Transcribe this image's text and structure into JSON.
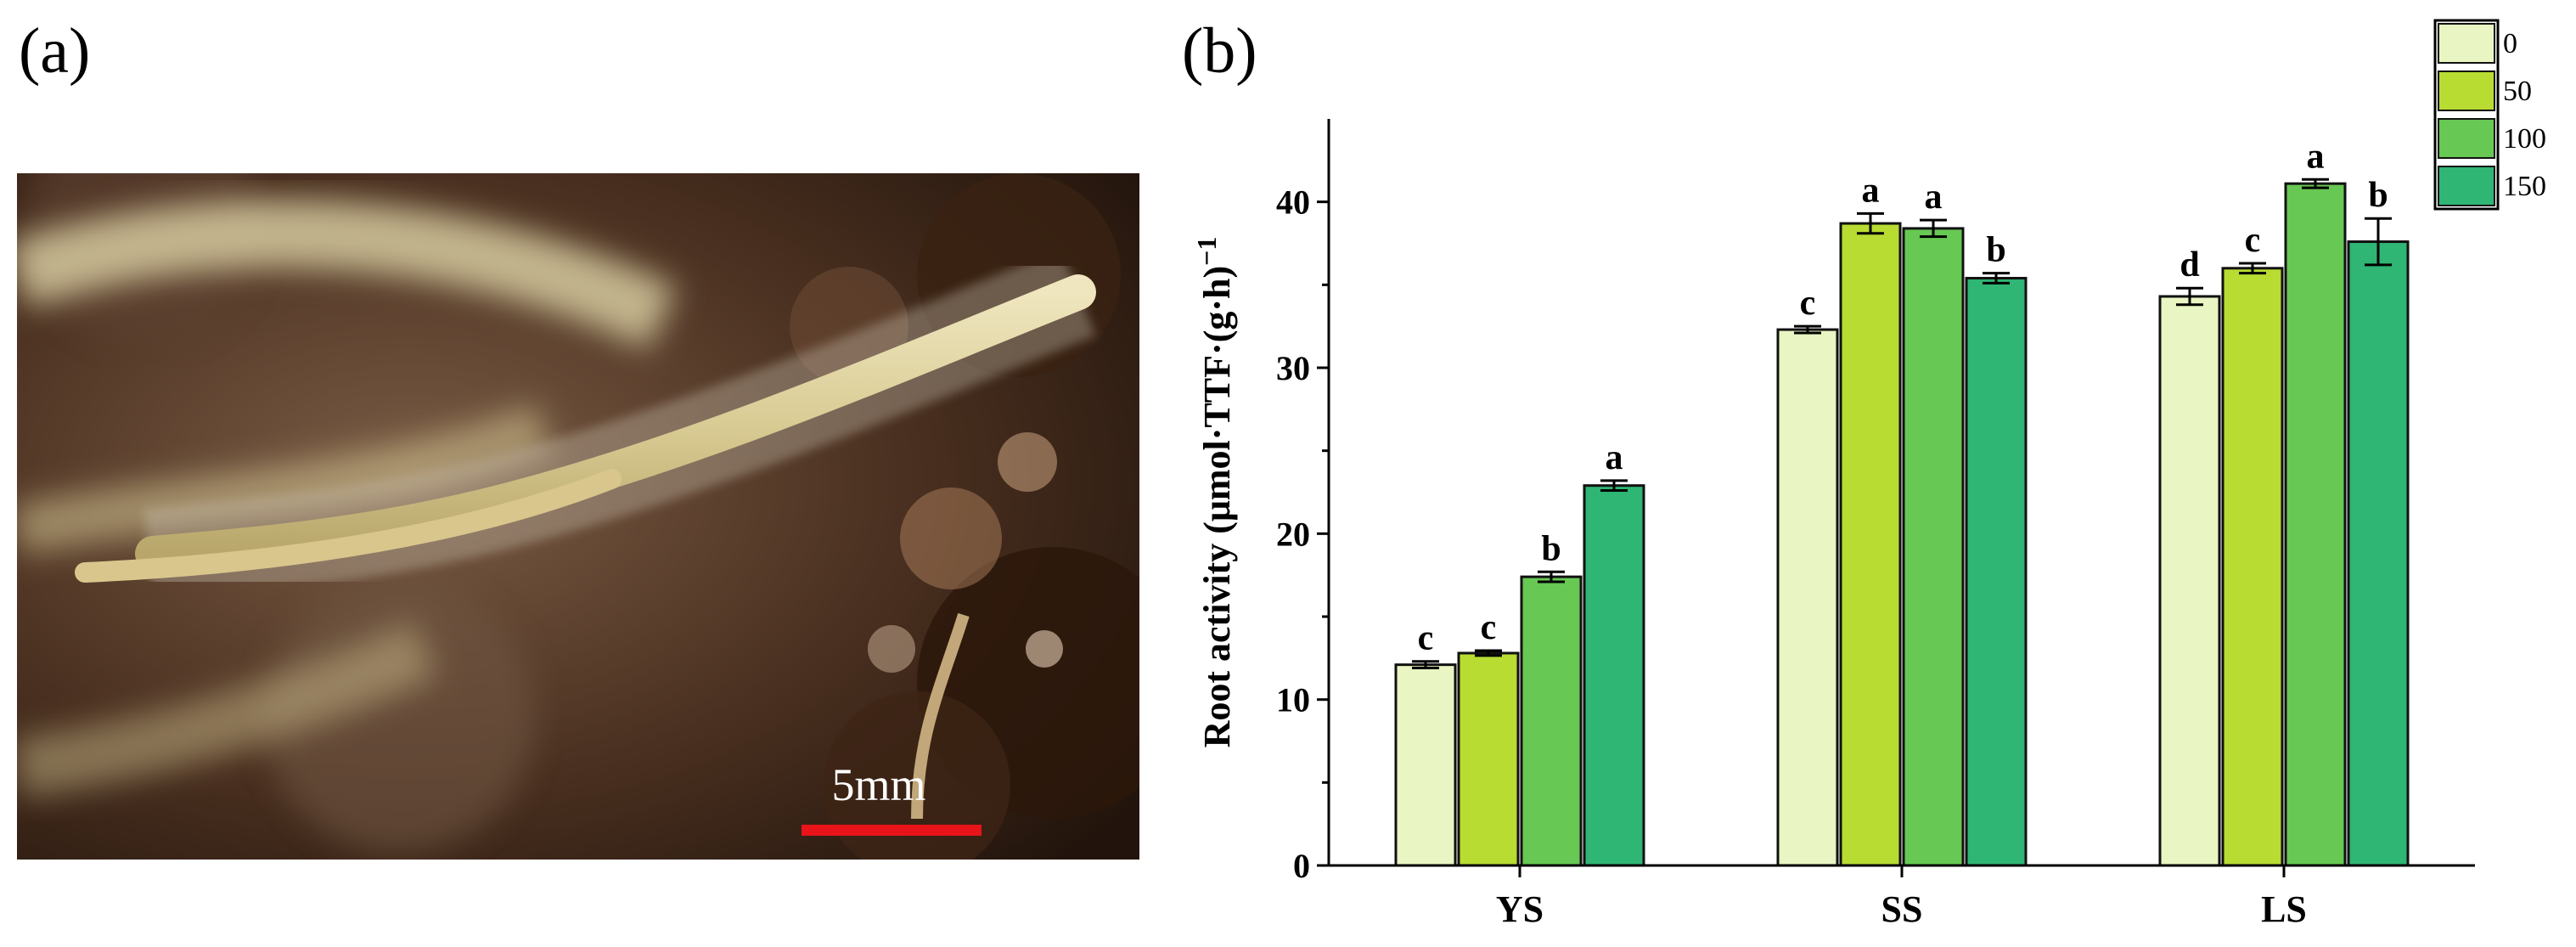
{
  "panels": {
    "a": "(a)",
    "b": "(b)"
  },
  "photo": {
    "scale_bar_label": "5mm",
    "scale_bar_color": "#e8141a"
  },
  "chart_data": {
    "type": "bar",
    "categories": [
      "YS",
      "SS",
      "LS"
    ],
    "ylabel": "Root activity (μmol·TTF·(g·h)",
    "ylabel_sup": "−1",
    "ylim": [
      0,
      45
    ],
    "yticks": [
      0,
      10,
      20,
      30,
      40
    ],
    "series": [
      {
        "name": "0",
        "color": "#e9f5c2",
        "values": [
          12.1,
          32.3,
          34.3
        ],
        "errors": [
          0.2,
          0.2,
          0.5
        ],
        "letters": [
          "c",
          "c",
          "d"
        ]
      },
      {
        "name": "50",
        "color": "#b8dc32",
        "values": [
          12.8,
          38.7,
          36.0
        ],
        "errors": [
          0.15,
          0.6,
          0.3
        ],
        "letters": [
          "c",
          "a",
          "c"
        ]
      },
      {
        "name": "100",
        "color": "#67c853",
        "values": [
          17.4,
          38.4,
          41.1
        ],
        "errors": [
          0.3,
          0.5,
          0.25
        ],
        "letters": [
          "b",
          "a",
          "a"
        ]
      },
      {
        "name": "150",
        "color": "#2fb574",
        "values": [
          22.9,
          35.4,
          37.6
        ],
        "errors": [
          0.3,
          0.3,
          1.4
        ],
        "letters": [
          "a",
          "b",
          "b"
        ]
      }
    ]
  }
}
